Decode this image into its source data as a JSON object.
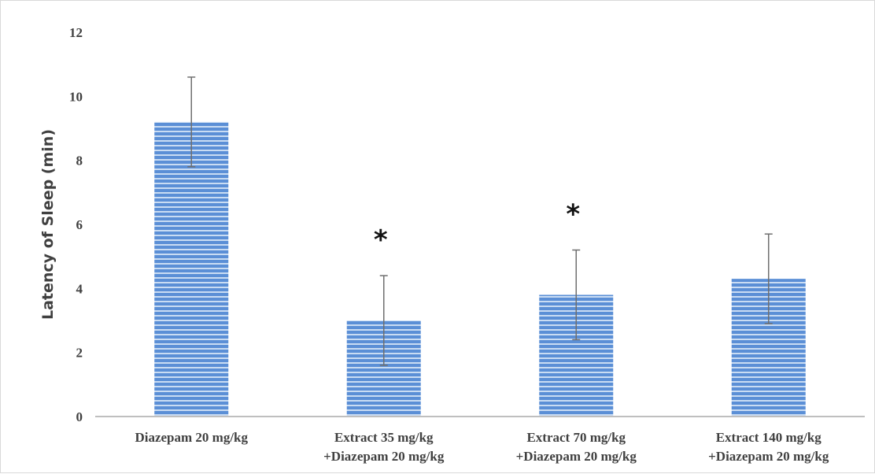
{
  "chart_data": {
    "type": "bar",
    "title": "",
    "xlabel": "",
    "ylabel": "Latency of Sleep (min)",
    "ylim": [
      0,
      12
    ],
    "yticks": [
      0,
      2,
      4,
      6,
      8,
      10,
      12
    ],
    "grid": false,
    "legend": "none",
    "categories": [
      [
        "Diazepam 20 mg/kg"
      ],
      [
        "Extract 35 mg/kg",
        "+Diazepam 20 mg/kg"
      ],
      [
        "Extract 70 mg/kg",
        "+Diazepam 20 mg/kg"
      ],
      [
        "Extract 140 mg/kg",
        "+Diazepam 20 mg/kg"
      ]
    ],
    "series": [
      {
        "values": [
          9.2,
          3.0,
          3.8,
          4.3
        ],
        "error": [
          1.4,
          1.4,
          1.4,
          1.4
        ],
        "significance": [
          "",
          "*",
          "*",
          ""
        ]
      }
    ],
    "colors": {
      "bar": "#5b8fd6",
      "bar_stripe": "#c9dcf3",
      "error_bar": "#6f6f6f",
      "axis": "#bfbfbf",
      "text": "#404040"
    }
  }
}
